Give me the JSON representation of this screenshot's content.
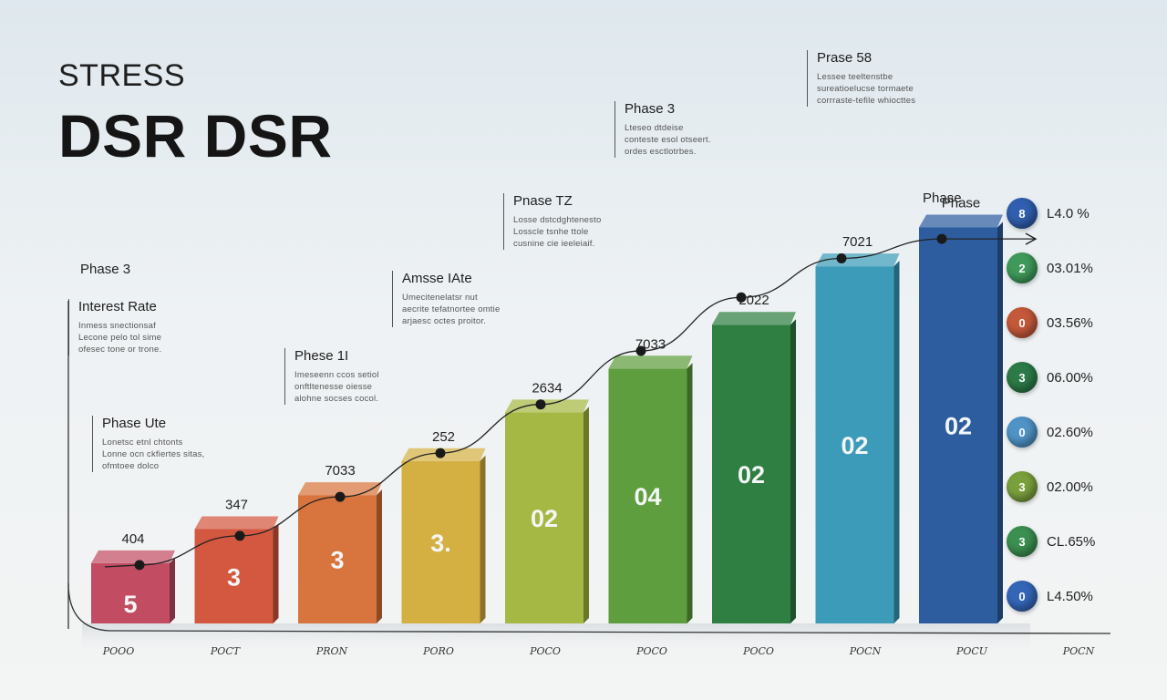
{
  "header": {
    "kicker": "STRESS",
    "title": "DSR DSR"
  },
  "annotations": [
    {
      "title": "Interest Rate",
      "lines": [
        "Inmess snectionsaf",
        "Lecone pelo tol sime",
        "ofesec tone or trone."
      ]
    },
    {
      "title": "Phase Ute",
      "lines": [
        "Lonetsc etnl chtonts",
        "Lonne ocn ckfiertes sitas,",
        "ofmtoee dolco"
      ]
    },
    {
      "title": "Phese 1I",
      "lines": [
        "Imeseenn ccos setiol",
        "onftltenesse oiesse",
        "alohne socses cocol."
      ]
    },
    {
      "title": "Amsse IAte",
      "lines": [
        "Umecitenelatsr nut",
        "aecrite tefatnortee omtie",
        "arjaesc octes proitor."
      ]
    },
    {
      "title": "Pnase TZ",
      "lines": [
        "Losse dstcdghtenesto",
        "Losscle tsnhe ttole",
        "cusnine cie ieeleiaif."
      ]
    },
    {
      "title": "Phase 3",
      "lines": [
        "Lteseo dtdeise",
        "conteste esol otseert.",
        "ordes esctlotrbes."
      ]
    },
    {
      "title": "Prase 58",
      "lines": [
        "Lessee teeltenstbe",
        "sureatioelucse tormaete",
        "corrraste-tefile whiocttes"
      ]
    }
  ],
  "stage_labels": {
    "phase_3": "Phase 3",
    "phase": "Phase"
  },
  "legend": [
    {
      "glyph": "8",
      "value": "L4.0 %",
      "color": "#2f5fae"
    },
    {
      "glyph": "2",
      "value": "03.01%",
      "color": "#3f9a5a"
    },
    {
      "glyph": "0",
      "value": "03.56%",
      "color": "#c4583a"
    },
    {
      "glyph": "3",
      "value": "06.00%",
      "color": "#2c7a47"
    },
    {
      "glyph": "0",
      "value": "02.60%",
      "color": "#4f93c7"
    },
    {
      "glyph": "3",
      "value": "02.00%",
      "color": "#7aa03c"
    },
    {
      "glyph": "3",
      "value": "CL.65%",
      "color": "#3b8f50"
    },
    {
      "glyph": "0",
      "value": "L4.50%",
      "color": "#3466b8"
    }
  ],
  "chart_data": {
    "type": "bar",
    "categories": [
      "POOO",
      "POCT",
      "PRON",
      "PORO",
      "POCO",
      "POCO",
      "POCO",
      "POCN",
      "POCU"
    ],
    "extra_tick_labels": [
      "POCN"
    ],
    "values": [
      1.5,
      2.2,
      2.9,
      3.6,
      4.6,
      5.5,
      6.4,
      7.6,
      8.4
    ],
    "top_labels": [
      "404",
      "347",
      "7033",
      "252",
      "2634",
      "7033",
      "2022",
      "7021",
      "Phase"
    ],
    "inner_labels": [
      "5",
      "3",
      "3",
      "3.",
      "02",
      "04",
      "02",
      "02",
      "02"
    ],
    "colors": [
      "#c24d63",
      "#d4573f",
      "#d8743d",
      "#d4b043",
      "#a5b843",
      "#5e9e3e",
      "#2f7e42",
      "#3b9bb8",
      "#2d5d9f"
    ],
    "trend_line": [
      1.2,
      1.8,
      2.6,
      3.5,
      4.5,
      5.6,
      6.7,
      7.5,
      7.9
    ],
    "ylim": [
      0,
      10
    ],
    "title": "",
    "xlabel": "",
    "ylabel": ""
  }
}
